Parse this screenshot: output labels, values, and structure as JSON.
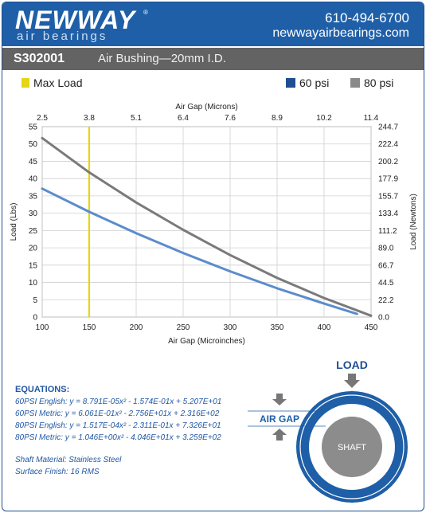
{
  "header": {
    "logo": "NEWWAY",
    "registered": "®",
    "tagline": "air bearings",
    "phone": "610-494-6700",
    "website": "newwayairbearings.com"
  },
  "title": {
    "part_number": "S302001",
    "description": "Air Bushing—20mm I.D."
  },
  "legend": {
    "max_load": "Max Load",
    "psi60": "60 psi",
    "psi80": "80 psi"
  },
  "colors": {
    "brand_blue": "#1f5fa7",
    "title_gray": "#636363",
    "series_60": "#5b8ccc",
    "series_80": "#7a7a7a",
    "max_load": "#e5d515",
    "legend_60": "#1d4f91",
    "legend_80": "#8a8a8a"
  },
  "chart_data": {
    "type": "line",
    "xlabel": "Air Gap (Microinches)",
    "x2label": "Air Gap (Microns)",
    "ylabel": "Load (Lbs)",
    "y2label": "Load (Newtons)",
    "xlim": [
      100,
      450
    ],
    "ylim": [
      0,
      55
    ],
    "x_ticks": [
      "100",
      "150",
      "200",
      "250",
      "300",
      "350",
      "400",
      "450"
    ],
    "x2_ticks": [
      "2.5",
      "3.8",
      "5.1",
      "6.4",
      "7.6",
      "8.9",
      "10.2",
      "11.4"
    ],
    "y_ticks": [
      "0",
      "5",
      "10",
      "15",
      "20",
      "25",
      "30",
      "35",
      "40",
      "45",
      "50",
      "55"
    ],
    "y2_ticks": [
      "0.0",
      "22.2",
      "44.5",
      "66.7",
      "89.0",
      "111.2",
      "133.4",
      "155.7",
      "177.9",
      "200.2",
      "222.4",
      "244.7"
    ],
    "grid": true,
    "max_load_x": 150,
    "series": [
      {
        "name": "60 psi",
        "x": [
          100,
          150,
          200,
          250,
          300,
          350,
          400,
          435
        ],
        "values": [
          37.1,
          30.4,
          24.2,
          18.5,
          13.2,
          8.3,
          3.9,
          0.9
        ]
      },
      {
        "name": "80 psi",
        "x": [
          100,
          150,
          200,
          250,
          300,
          350,
          400,
          450
        ],
        "values": [
          51.7,
          41.8,
          33.1,
          25.2,
          17.9,
          11.3,
          5.5,
          0.4
        ]
      }
    ]
  },
  "equations": {
    "heading": "EQUATIONS:",
    "lines": [
      "60PSI English:  y = 8.791E-05x² - 1.574E-01x + 5.207E+01",
      "60PSI Metric:  y = 6.061E-01x² - 2.756E+01x + 2.316E+02",
      "80PSI English:  y = 1.517E-04x² - 2.311E-01x + 7.326E+01",
      "80PSI Metric:  y = 1.046E+00x² - 4.046E+01x + 3.259E+02"
    ],
    "material": "Shaft Material:  Stainless Steel",
    "finish": "Surface Finish:  16 RMS"
  },
  "diagram": {
    "load_label": "LOAD",
    "gap_label": "AIR GAP",
    "shaft_label": "SHAFT"
  }
}
